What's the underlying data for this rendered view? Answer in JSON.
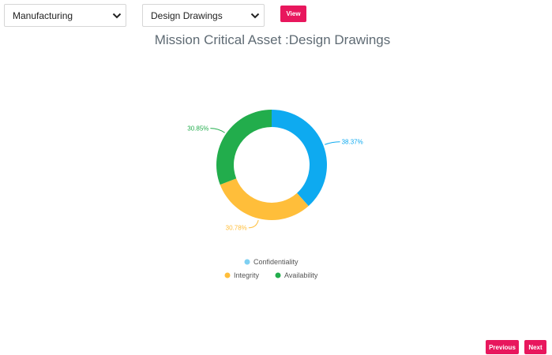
{
  "filters": {
    "department": {
      "value": "Manufacturing",
      "icon": "chevron-down-icon"
    },
    "asset": {
      "value": "Design Drawings",
      "icon": "chevron-down-icon"
    },
    "view_label": "View"
  },
  "chart_data": {
    "type": "pie",
    "title": "Mission Critical Asset :Design Drawings",
    "labels": [
      "Confidentiality",
      "Integrity",
      "Availability"
    ],
    "values": [
      38.37,
      30.78,
      30.85
    ],
    "value_labels": [
      "38.37%",
      "30.78%",
      "30.85%"
    ],
    "colors": [
      "#0eaaf0",
      "#ffbe3a",
      "#22ad4c"
    ],
    "legend_colors": [
      "#7fd0f2",
      "#ffbe3a",
      "#22ad4c"
    ],
    "donut": true,
    "legend": "bottom-center"
  },
  "pager": {
    "previous_label": "Previous",
    "next_label": "Next"
  },
  "colors": {
    "accent": "#e8175d"
  }
}
